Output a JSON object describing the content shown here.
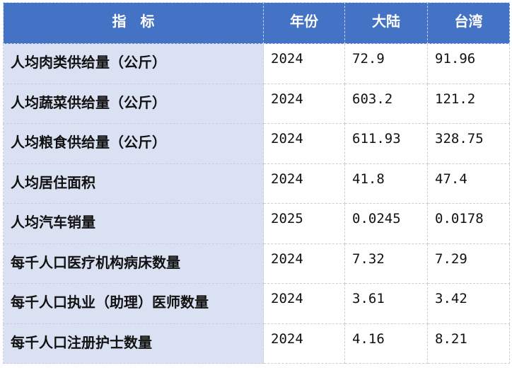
{
  "header": {
    "indicator": "指　标",
    "year": "年份",
    "mainland": "大陆",
    "taiwan": "台湾"
  },
  "colors": {
    "header_bg": "#4472c4",
    "first_col_bg": "#d9e1f2"
  },
  "rows": [
    {
      "indicator": "人均肉类供给量（公斤）",
      "year": "2024",
      "mainland": "72.9",
      "taiwan": "91.96"
    },
    {
      "indicator": "人均蔬菜供给量（公斤）",
      "year": "2024",
      "mainland": "603.2",
      "taiwan": "121.2"
    },
    {
      "indicator": "人均粮食供给量（公斤）",
      "year": "2024",
      "mainland": "611.93",
      "taiwan": "328.75"
    },
    {
      "indicator": "人均居住面积",
      "year": "2024",
      "mainland": "41.8",
      "taiwan": "47.4"
    },
    {
      "indicator": "人均汽车销量",
      "year": "2025",
      "mainland": "0.0245",
      "taiwan": "0.0178"
    },
    {
      "indicator": "每千人口医疗机构病床数量",
      "year": "2024",
      "mainland": "7.32",
      "taiwan": "7.29"
    },
    {
      "indicator": "每千人口执业（助理）医师数量",
      "year": "2024",
      "mainland": "3.61",
      "taiwan": "3.42"
    },
    {
      "indicator": "每千人口注册护士数量",
      "year": "2024",
      "mainland": "4.16",
      "taiwan": "8.21"
    }
  ]
}
